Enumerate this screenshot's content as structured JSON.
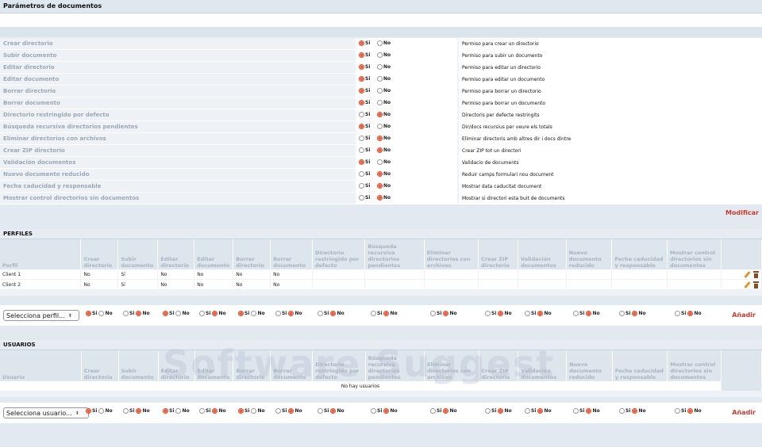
{
  "page": {
    "title": "Parámetros de documentos"
  },
  "params": [
    {
      "label": "Crear directorio",
      "value": "Si",
      "desc": "Permiso para crear un directorio"
    },
    {
      "label": "Subir documento",
      "value": "Si",
      "desc": "Permiso para subir un documento"
    },
    {
      "label": "Editar directorio",
      "value": "Si",
      "desc": "Permiso para editar un directorio"
    },
    {
      "label": "Editar documento",
      "value": "Si",
      "desc": "Permiso para editar un documento"
    },
    {
      "label": "Borrar directorio",
      "value": "Si",
      "desc": "Permiso para borrar un directorio"
    },
    {
      "label": "Borrar documento",
      "value": "Si",
      "desc": "Permiso para borrar un documento"
    },
    {
      "label": "Directorio restringido por defecto",
      "value": "No",
      "desc": "Directoris per defecte restringits"
    },
    {
      "label": "Búsqueda recursiva directorios pendientes",
      "value": "Si",
      "desc": "Dir/docs recursius per veure els totals"
    },
    {
      "label": "Eliminar directorios con archivos",
      "value": "No",
      "desc": "Eliminar directoris amb altres dir i docs dintre"
    },
    {
      "label": "Crear ZIP directorio",
      "value": "No",
      "desc": "Crear ZIP tot un directori"
    },
    {
      "label": "Validación documentos",
      "value": "Si",
      "desc": "Validacio de documents"
    },
    {
      "label": "Nuevo documento reducido",
      "value": "No",
      "desc": "Reduir camps formulari nou document"
    },
    {
      "label": "Fecha caducidad y responsable",
      "value": "No",
      "desc": "Mostrar data caducitat document"
    },
    {
      "label": "Mostrar control directorios sin documentos",
      "value": "No",
      "desc": "Mostrar si directori esta buit de documents"
    }
  ],
  "radio": {
    "si": "Si",
    "no": "No"
  },
  "modify_label": "Modificar",
  "perfiles": {
    "title": "PERFILES",
    "first_col": "Perfil",
    "columns": [
      "Crear directorio",
      "Subir documento",
      "Editar directorio",
      "Editar documento",
      "Borrar directorio",
      "Borrar documento",
      "Directorio restringido por defecto",
      "Búsqueda recursiva directorios pendientes",
      "Eliminar directorios con archivos",
      "Crear ZIP directorio",
      "Validación documentos",
      "Nuevo documento reducido",
      "Fecha caducidad y responsable",
      "Mostrar control directorios sin documentos"
    ],
    "rows": [
      {
        "name": "Client 1",
        "values": [
          "No",
          "Sí",
          "No",
          "No",
          "No",
          "No",
          "",
          "",
          "",
          "",
          "",
          "",
          "",
          ""
        ]
      },
      {
        "name": "Client 2",
        "values": [
          "No",
          "Sí",
          "No",
          "No",
          "No",
          "No",
          "",
          "",
          "",
          "",
          "",
          "",
          "",
          ""
        ]
      }
    ],
    "select_placeholder": "Selecciona perfil...",
    "add_label": "Añadir"
  },
  "usuarios": {
    "title": "USUARIOS",
    "first_col": "Usuario",
    "empty_text": "No hay usuarios",
    "select_placeholder": "Selecciona usuario...",
    "add_label": "Añadir"
  },
  "watermark": "Software Suggest",
  "colors": {
    "accent": "#d03a2a",
    "radio_on": "#e86040",
    "header_bg": "#dde5ed"
  }
}
